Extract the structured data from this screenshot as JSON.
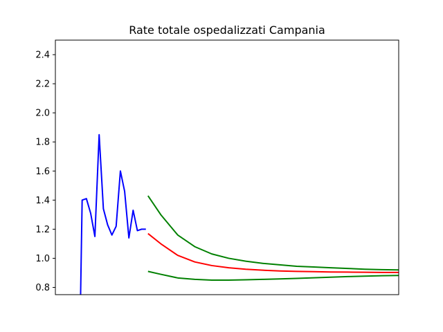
{
  "chart_data": {
    "type": "line",
    "title": "Rate totale ospedalizzati Campania",
    "xlabel": "",
    "ylabel": "",
    "xlim": [
      -0.4,
      40
    ],
    "ylim": [
      0.75,
      2.5
    ],
    "yticks": [
      0.8,
      1.0,
      1.2,
      1.4,
      1.6,
      1.8,
      2.0,
      2.2,
      2.4
    ],
    "yticklabels": [
      "0.8",
      "1.0",
      "1.2",
      "1.4",
      "1.6",
      "1.8",
      "2.0",
      "2.2",
      "2.4"
    ],
    "grid": false,
    "series": [
      {
        "color": "#0000ff",
        "x": [
          2.5,
          2.75,
          3.25,
          3.75,
          4.25,
          4.75,
          5.25,
          5.75,
          6.25,
          6.75,
          7.25,
          7.75,
          8.25,
          8.75,
          9.25,
          9.75,
          10.25
        ],
        "y": [
          0.5,
          1.4,
          1.41,
          1.31,
          1.15,
          1.85,
          1.34,
          1.23,
          1.16,
          1.22,
          1.6,
          1.46,
          1.14,
          1.33,
          1.19,
          1.2,
          1.2
        ]
      },
      {
        "color": "#008000",
        "x": [
          10.5,
          12,
          14,
          16,
          18,
          20,
          22,
          24,
          26,
          28,
          30,
          32,
          34,
          36,
          38,
          40
        ],
        "y": [
          1.43,
          1.3,
          1.16,
          1.08,
          1.03,
          1.0,
          0.98,
          0.965,
          0.955,
          0.945,
          0.94,
          0.935,
          0.93,
          0.925,
          0.922,
          0.92
        ]
      },
      {
        "color": "#ff0000",
        "x": [
          10.5,
          12,
          14,
          16,
          18,
          20,
          22,
          24,
          26,
          28,
          30,
          32,
          34,
          36,
          38,
          40
        ],
        "y": [
          1.17,
          1.1,
          1.02,
          0.975,
          0.95,
          0.935,
          0.925,
          0.918,
          0.913,
          0.91,
          0.908,
          0.906,
          0.905,
          0.904,
          0.903,
          0.903
        ]
      },
      {
        "color": "#008000",
        "x": [
          10.5,
          12,
          14,
          16,
          18,
          20,
          22,
          24,
          26,
          28,
          30,
          32,
          34,
          36,
          38,
          40
        ],
        "y": [
          0.91,
          0.89,
          0.865,
          0.855,
          0.85,
          0.85,
          0.852,
          0.855,
          0.858,
          0.862,
          0.866,
          0.87,
          0.874,
          0.877,
          0.88,
          0.882
        ]
      }
    ]
  }
}
